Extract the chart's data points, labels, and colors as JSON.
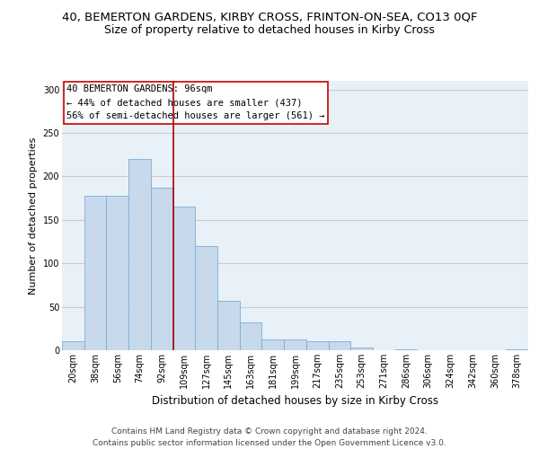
{
  "title1": "40, BEMERTON GARDENS, KIRBY CROSS, FRINTON-ON-SEA, CO13 0QF",
  "title2": "Size of property relative to detached houses in Kirby Cross",
  "xlabel": "Distribution of detached houses by size in Kirby Cross",
  "ylabel": "Number of detached properties",
  "categories": [
    "20sqm",
    "38sqm",
    "56sqm",
    "74sqm",
    "92sqm",
    "109sqm",
    "127sqm",
    "145sqm",
    "163sqm",
    "181sqm",
    "199sqm",
    "217sqm",
    "235sqm",
    "253sqm",
    "271sqm",
    "286sqm",
    "306sqm",
    "324sqm",
    "342sqm",
    "360sqm",
    "378sqm"
  ],
  "values": [
    10,
    178,
    178,
    220,
    187,
    165,
    120,
    57,
    32,
    12,
    12,
    10,
    10,
    3,
    0,
    1,
    0,
    0,
    0,
    0,
    1
  ],
  "bar_color": "#c8d9ec",
  "bar_edge_color": "#7aaed6",
  "vline_x": 4.5,
  "vline_color": "#aa0000",
  "annotation_text": "40 BEMERTON GARDENS: 96sqm\n← 44% of detached houses are smaller (437)\n56% of semi-detached houses are larger (561) →",
  "annotation_box_color": "white",
  "annotation_box_edge_color": "#cc0000",
  "footer": "Contains HM Land Registry data © Crown copyright and database right 2024.\nContains public sector information licensed under the Open Government Licence v3.0.",
  "ylim": [
    0,
    310
  ],
  "yticks": [
    0,
    50,
    100,
    150,
    200,
    250,
    300
  ],
  "background_color": "#e8f0f8",
  "grid_color": "#cccccc",
  "title1_fontsize": 9.5,
  "title2_fontsize": 9,
  "xlabel_fontsize": 8.5,
  "ylabel_fontsize": 8,
  "tick_fontsize": 7,
  "footer_fontsize": 6.5,
  "annotation_fontsize": 7.5
}
